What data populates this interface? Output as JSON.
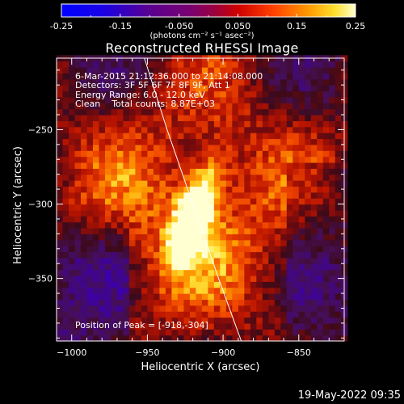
{
  "colorbar": {
    "unit": "(photons cm⁻² s⁻¹ asec⁻²)",
    "ticks": [
      "-0.25",
      "-0.15",
      "-0.050",
      "0.050",
      "0.15",
      "0.25"
    ]
  },
  "annotations": {
    "time_range": "6-Mar-2015 21:12:36.000 to 21:14:08.000",
    "detectors": "Detectors: 3F 5F 6F 7F 8F 9F, Att 1",
    "energy_range": "Energy Range: 6.0 - 12.0 keV",
    "clean_counts": "Clean    Total counts: 8.87E+03",
    "peak_position": "Position of Peak = [-918,-304]"
  },
  "timestamp": "19-May-2022 09:35",
  "colors": {
    "background": "#000000",
    "foreground": "#ffffff"
  },
  "chart_data": {
    "type": "heatmap",
    "title": "Reconstructed RHESSI Image",
    "xlabel": "Heliocentric X (arcsec)",
    "ylabel": "Heliocentric Y (arcsec)",
    "xlim": [
      -1010,
      -820
    ],
    "ylim": [
      -392,
      -202
    ],
    "xticks": [
      -1000,
      -950,
      -900,
      -850
    ],
    "yticks": [
      -350,
      -300,
      -250
    ],
    "xtick_labels": [
      "−1000",
      "−950",
      "−900",
      "−850"
    ],
    "ytick_labels": [
      "−350",
      "−300",
      "−250"
    ],
    "color_range": [
      -0.25,
      0.25
    ],
    "colormap": "rhessi",
    "peak": {
      "x": -918,
      "y": -304,
      "value": 0.25
    },
    "limb": [
      [
        -952,
        -202
      ],
      [
        -937,
        -250
      ],
      [
        -920,
        -300
      ],
      [
        -903,
        -350
      ],
      [
        -888,
        -392
      ]
    ]
  }
}
